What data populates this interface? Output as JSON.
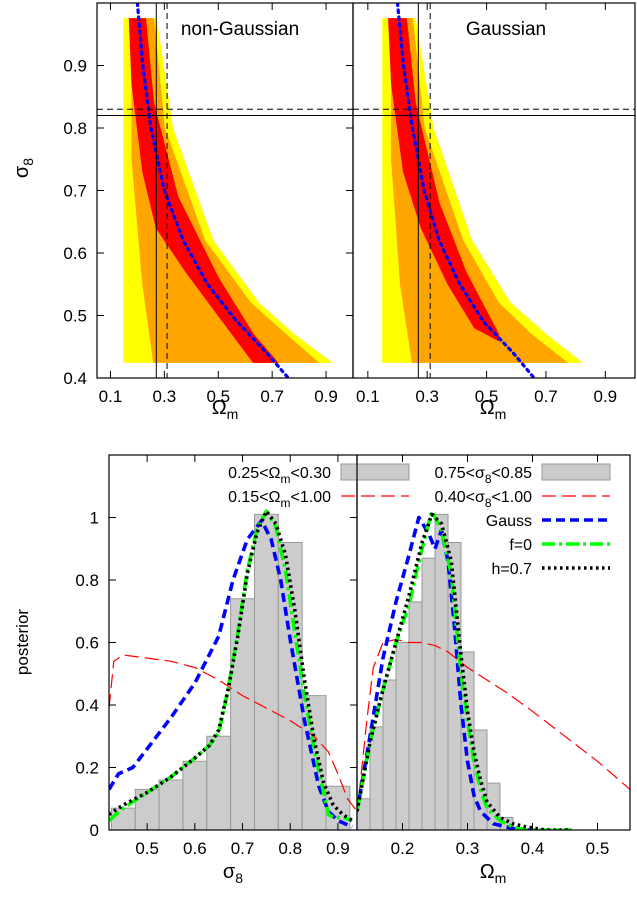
{
  "chart_data": [
    {
      "type": "contour",
      "panel_label": "non-Gaussian",
      "xlabel": "Ω",
      "xlabel_sub": "m",
      "ylabel": "σ",
      "ylabel_sub": "8",
      "xlim": [
        0.05,
        1.0
      ],
      "ylim": [
        0.4,
        1.0
      ],
      "xticks": [
        "0.1",
        "0.3",
        "0.5",
        "0.7",
        "0.9"
      ],
      "xtick_values": [
        0.1,
        0.3,
        0.5,
        0.7,
        0.9
      ],
      "yticks": [
        "0.4",
        "0.5",
        "0.6",
        "0.7",
        "0.8",
        "0.9"
      ],
      "ytick_values": [
        0.4,
        0.5,
        0.6,
        0.7,
        0.8,
        0.9
      ],
      "levels": [
        {
          "level": "outer",
          "color": "#ffff00",
          "polygon": [
            [
              0.15,
              0.975
            ],
            [
              0.27,
              0.975
            ],
            [
              0.33,
              0.8
            ],
            [
              0.48,
              0.62
            ],
            [
              0.65,
              0.52
            ],
            [
              0.78,
              0.47
            ],
            [
              0.92,
              0.425
            ],
            [
              0.15,
              0.425
            ]
          ]
        },
        {
          "level": "middle",
          "color": "#ffa500",
          "polygon": [
            [
              0.18,
              0.975
            ],
            [
              0.26,
              0.975
            ],
            [
              0.3,
              0.8
            ],
            [
              0.45,
              0.62
            ],
            [
              0.62,
              0.52
            ],
            [
              0.75,
              0.47
            ],
            [
              0.87,
              0.425
            ],
            [
              0.26,
              0.425
            ],
            [
              0.22,
              0.55
            ],
            [
              0.18,
              0.75
            ]
          ]
        },
        {
          "level": "inner",
          "color": "#ff0000",
          "polygon": [
            [
              0.17,
              0.975
            ],
            [
              0.23,
              0.975
            ],
            [
              0.26,
              0.84
            ],
            [
              0.35,
              0.69
            ],
            [
              0.5,
              0.56
            ],
            [
              0.63,
              0.47
            ],
            [
              0.72,
              0.425
            ],
            [
              0.63,
              0.425
            ],
            [
              0.5,
              0.5
            ],
            [
              0.38,
              0.57
            ],
            [
              0.27,
              0.64
            ],
            [
              0.22,
              0.73
            ],
            [
              0.18,
              0.87
            ]
          ]
        }
      ],
      "degeneracy_line": {
        "color": "#0000ff",
        "points": [
          [
            0.2,
            1.0
          ],
          [
            0.22,
            0.9
          ],
          [
            0.25,
            0.8
          ],
          [
            0.3,
            0.7
          ],
          [
            0.37,
            0.62
          ],
          [
            0.46,
            0.55
          ],
          [
            0.57,
            0.49
          ],
          [
            0.68,
            0.44
          ],
          [
            0.76,
            0.4
          ]
        ]
      },
      "reference_solid": {
        "x": 0.27,
        "y": 0.82
      },
      "reference_dashed": {
        "x": 0.31,
        "y": 0.83
      }
    },
    {
      "type": "contour",
      "panel_label": "Gaussian",
      "xlabel": "Ω",
      "xlabel_sub": "m",
      "xlim": [
        0.05,
        1.0
      ],
      "ylim": [
        0.4,
        1.0
      ],
      "xticks": [
        "0.1",
        "0.3",
        "0.5",
        "0.7",
        "0.9"
      ],
      "xtick_values": [
        0.1,
        0.3,
        0.5,
        0.7,
        0.9
      ],
      "levels": [
        {
          "level": "outer",
          "color": "#ffff00",
          "polygon": [
            [
              0.15,
              0.975
            ],
            [
              0.26,
              0.975
            ],
            [
              0.32,
              0.8
            ],
            [
              0.45,
              0.62
            ],
            [
              0.58,
              0.52
            ],
            [
              0.7,
              0.47
            ],
            [
              0.82,
              0.425
            ],
            [
              0.15,
              0.425
            ]
          ]
        },
        {
          "level": "middle",
          "color": "#ffa500",
          "polygon": [
            [
              0.18,
              0.975
            ],
            [
              0.25,
              0.975
            ],
            [
              0.29,
              0.8
            ],
            [
              0.42,
              0.62
            ],
            [
              0.54,
              0.52
            ],
            [
              0.65,
              0.47
            ],
            [
              0.77,
              0.425
            ],
            [
              0.25,
              0.425
            ],
            [
              0.21,
              0.55
            ],
            [
              0.18,
              0.75
            ]
          ]
        },
        {
          "level": "inner",
          "color": "#ff0000",
          "polygon": [
            [
              0.17,
              0.975
            ],
            [
              0.23,
              0.975
            ],
            [
              0.26,
              0.84
            ],
            [
              0.34,
              0.68
            ],
            [
              0.43,
              0.57
            ],
            [
              0.54,
              0.47
            ],
            [
              0.54,
              0.46
            ],
            [
              0.46,
              0.48
            ],
            [
              0.37,
              0.55
            ],
            [
              0.28,
              0.64
            ],
            [
              0.22,
              0.73
            ],
            [
              0.18,
              0.87
            ]
          ]
        }
      ],
      "degeneracy_line": {
        "color": "#0000ff",
        "points": [
          [
            0.2,
            1.0
          ],
          [
            0.22,
            0.9
          ],
          [
            0.25,
            0.8
          ],
          [
            0.29,
            0.7
          ],
          [
            0.34,
            0.62
          ],
          [
            0.41,
            0.55
          ],
          [
            0.49,
            0.49
          ],
          [
            0.59,
            0.44
          ],
          [
            0.66,
            0.4
          ]
        ]
      },
      "reference_solid": {
        "x": 0.27,
        "y": 0.82
      },
      "reference_dashed": {
        "x": 0.31,
        "y": 0.83
      }
    },
    {
      "type": "bar",
      "xlabel": "σ",
      "xlabel_sub": "8",
      "ylabel": "posterior",
      "xlim": [
        0.42,
        0.94
      ],
      "ylim": [
        0,
        1.2
      ],
      "xticks": [
        "0.5",
        "0.6",
        "0.7",
        "0.8",
        "0.9"
      ],
      "xtick_values": [
        0.5,
        0.6,
        0.7,
        0.8,
        0.9
      ],
      "yticks": [
        "0",
        "0.2",
        "0.4",
        "0.6",
        "0.8",
        "1"
      ],
      "ytick_values": [
        0,
        0.2,
        0.4,
        0.6,
        0.8,
        1.0
      ],
      "bins": [
        0.425,
        0.475,
        0.525,
        0.575,
        0.625,
        0.675,
        0.725,
        0.775,
        0.825,
        0.875,
        0.925
      ],
      "hist_values": [
        0.07,
        0.13,
        0.16,
        0.22,
        0.3,
        0.74,
        1.01,
        0.92,
        0.43,
        0.14
      ],
      "legend": [
        {
          "label": "0.25<Ω<sub>m</sub><0.30",
          "pre": "0.25<Ω",
          "sub": "m",
          "post": "<0.30",
          "style": "hist"
        },
        {
          "label": "0.15<Ω<sub>m</sub><1.00",
          "pre": "0.15<Ω",
          "sub": "m",
          "post": "<1.00",
          "style": "red-dashed"
        }
      ],
      "series": [
        {
          "key": "broad",
          "color": "#ff0000",
          "x": [
            0.42,
            0.43,
            0.45,
            0.5,
            0.55,
            0.6,
            0.65,
            0.7,
            0.75,
            0.8,
            0.85,
            0.88,
            0.9,
            0.92,
            0.94
          ],
          "values": [
            0.39,
            0.54,
            0.56,
            0.55,
            0.54,
            0.52,
            0.48,
            0.43,
            0.39,
            0.35,
            0.3,
            0.25,
            0.18,
            0.1,
            0.06
          ]
        },
        {
          "key": "gauss",
          "color": "#0000ff",
          "x": [
            0.42,
            0.44,
            0.47,
            0.5,
            0.55,
            0.6,
            0.65,
            0.68,
            0.71,
            0.74,
            0.76,
            0.78,
            0.8,
            0.83,
            0.86,
            0.88,
            0.9,
            0.93
          ],
          "values": [
            0.13,
            0.18,
            0.2,
            0.26,
            0.36,
            0.47,
            0.62,
            0.8,
            0.93,
            0.99,
            0.93,
            0.8,
            0.61,
            0.35,
            0.14,
            0.06,
            0.03,
            0.01
          ]
        },
        {
          "key": "f0",
          "color": "#00ff00",
          "x": [
            0.42,
            0.45,
            0.5,
            0.55,
            0.6,
            0.63,
            0.65,
            0.67,
            0.69,
            0.71,
            0.73,
            0.75,
            0.77,
            0.79,
            0.81,
            0.83,
            0.85,
            0.87,
            0.88,
            0.89,
            0.91,
            0.93
          ],
          "values": [
            0.03,
            0.07,
            0.12,
            0.17,
            0.23,
            0.27,
            0.31,
            0.45,
            0.63,
            0.83,
            0.96,
            1.02,
            0.97,
            0.83,
            0.63,
            0.43,
            0.26,
            0.12,
            0.05,
            0.04,
            0.04,
            0.03
          ]
        },
        {
          "key": "h07",
          "color": "#000000",
          "x": [
            0.42,
            0.45,
            0.5,
            0.55,
            0.6,
            0.63,
            0.65,
            0.67,
            0.69,
            0.71,
            0.73,
            0.75,
            0.77,
            0.79,
            0.81,
            0.83,
            0.85,
            0.87,
            0.89,
            0.91,
            0.93
          ],
          "values": [
            0.05,
            0.08,
            0.12,
            0.17,
            0.23,
            0.27,
            0.32,
            0.45,
            0.62,
            0.82,
            0.95,
            1.02,
            0.98,
            0.88,
            0.7,
            0.48,
            0.29,
            0.15,
            0.08,
            0.05,
            0.03
          ]
        }
      ]
    },
    {
      "type": "bar",
      "xlabel": "Ω",
      "xlabel_sub": "m",
      "xlim": [
        0.13,
        0.55
      ],
      "ylim": [
        0,
        1.2
      ],
      "xticks": [
        "0.2",
        "0.3",
        "0.4",
        "0.5"
      ],
      "xtick_values": [
        0.2,
        0.3,
        0.4,
        0.5
      ],
      "bins": [
        0.13,
        0.15,
        0.17,
        0.19,
        0.21,
        0.23,
        0.25,
        0.27,
        0.29,
        0.31,
        0.33,
        0.35,
        0.37
      ],
      "hist_values": [
        0.1,
        0.33,
        0.48,
        0.6,
        0.73,
        0.87,
        1.01,
        0.92,
        0.57,
        0.32,
        0.15,
        0.04
      ],
      "legend": [
        {
          "label": "0.75<σ<sub>8</sub><0.85",
          "pre": "0.75<σ",
          "sub": "8",
          "post": "<0.85",
          "style": "hist"
        },
        {
          "label": "0.40<σ<sub>8</sub><1.00",
          "pre": "0.40<σ",
          "sub": "8",
          "post": "<1.00",
          "style": "red-dashed"
        },
        {
          "label": "Gauss",
          "pre": "Gauss",
          "sub": "",
          "post": "",
          "style": "blue-dashed"
        },
        {
          "label": "f=0",
          "pre": "f=0",
          "sub": "",
          "post": "",
          "style": "green-dashdot"
        },
        {
          "label": "h=0.7",
          "pre": "h=0.7",
          "sub": "",
          "post": "",
          "style": "black-dotted"
        }
      ],
      "series": [
        {
          "key": "broad",
          "color": "#ff0000",
          "x": [
            0.13,
            0.145,
            0.155,
            0.17,
            0.19,
            0.21,
            0.23,
            0.25,
            0.27,
            0.3,
            0.33,
            0.36,
            0.4,
            0.45,
            0.5,
            0.55
          ],
          "values": [
            0.05,
            0.35,
            0.52,
            0.6,
            0.61,
            0.6,
            0.6,
            0.59,
            0.57,
            0.52,
            0.48,
            0.44,
            0.38,
            0.3,
            0.22,
            0.13
          ]
        },
        {
          "key": "gauss",
          "color": "#0000ff",
          "x": [
            0.13,
            0.15,
            0.17,
            0.19,
            0.21,
            0.225,
            0.24,
            0.25,
            0.26,
            0.27,
            0.28,
            0.29,
            0.3,
            0.31,
            0.32,
            0.34,
            0.36,
            0.38,
            0.4
          ],
          "values": [
            0.06,
            0.3,
            0.55,
            0.73,
            0.88,
            1.0,
            0.95,
            0.9,
            0.96,
            0.86,
            0.65,
            0.4,
            0.22,
            0.11,
            0.06,
            0.02,
            0.01,
            0.0,
            0.0
          ]
        },
        {
          "key": "f0",
          "color": "#00ff00",
          "x": [
            0.13,
            0.15,
            0.17,
            0.19,
            0.21,
            0.23,
            0.245,
            0.26,
            0.275,
            0.29,
            0.3,
            0.31,
            0.32,
            0.33,
            0.35,
            0.37,
            0.39,
            0.42,
            0.46
          ],
          "values": [
            0.06,
            0.28,
            0.45,
            0.6,
            0.72,
            0.9,
            1.02,
            0.96,
            0.82,
            0.5,
            0.35,
            0.22,
            0.13,
            0.07,
            0.03,
            0.01,
            0.0,
            0.0,
            0.0
          ]
        },
        {
          "key": "h07",
          "color": "#000000",
          "x": [
            0.13,
            0.15,
            0.17,
            0.19,
            0.21,
            0.23,
            0.245,
            0.26,
            0.275,
            0.29,
            0.3,
            0.31,
            0.32,
            0.33,
            0.35,
            0.37,
            0.39,
            0.42,
            0.46
          ],
          "values": [
            0.06,
            0.28,
            0.45,
            0.6,
            0.75,
            0.92,
            1.01,
            0.98,
            0.86,
            0.56,
            0.38,
            0.25,
            0.16,
            0.09,
            0.04,
            0.02,
            0.01,
            0.0,
            0.0
          ]
        }
      ]
    }
  ]
}
